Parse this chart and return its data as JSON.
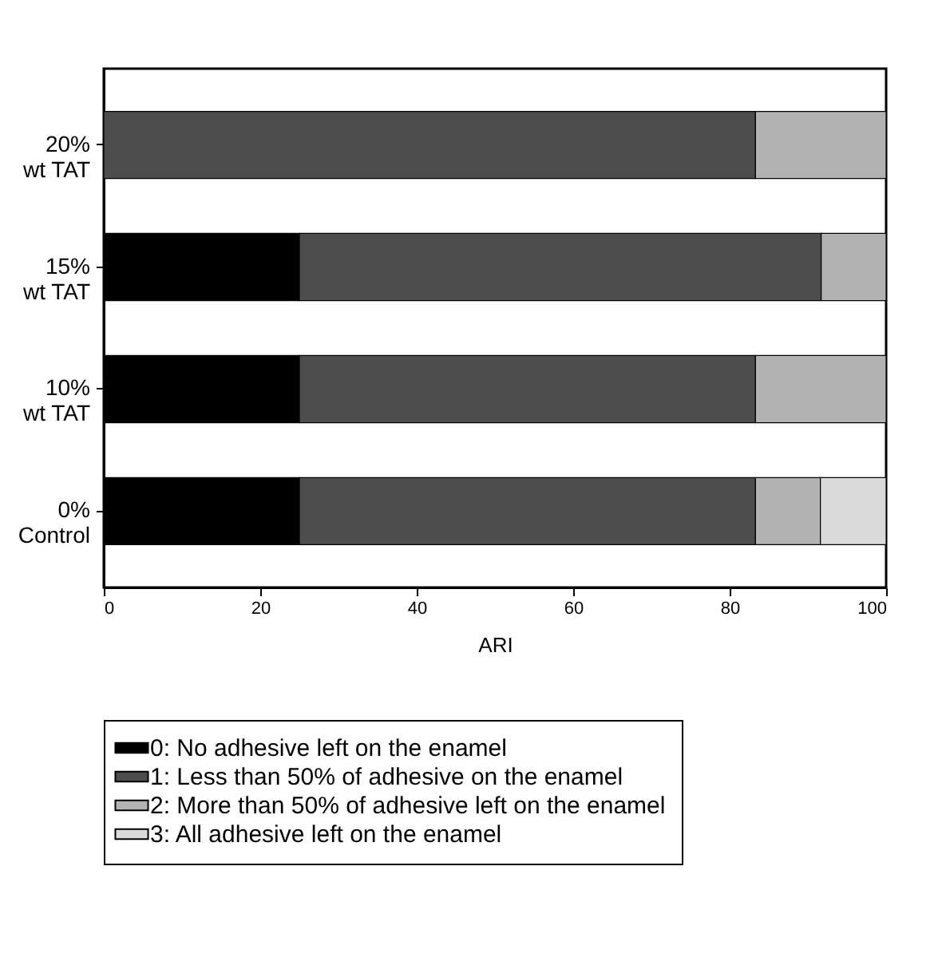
{
  "chart_data": {
    "type": "bar",
    "orientation": "horizontal",
    "stacked": true,
    "xlabel": "ARI",
    "categories": [
      "20%\nwt TAT",
      "15%\nwt TAT",
      "10%\nwt TAT",
      "0%\nControl"
    ],
    "series": [
      {
        "name": "0: No adhesive left on the enamel",
        "color": "#000000",
        "values": [
          0,
          25,
          25,
          25
        ]
      },
      {
        "name": "1: Less than 50% of adhesive on the enamel",
        "color": "#4d4d4d",
        "values": [
          83.3,
          66.7,
          58.3,
          58.3
        ]
      },
      {
        "name": "2: More than 50% of adhesive left on the enamel",
        "color": "#b2b2b2",
        "values": [
          16.7,
          8.3,
          16.7,
          8.3
        ]
      },
      {
        "name": "3: All adhesive left on the enamel",
        "color": "#dadada",
        "values": [
          0,
          0,
          0,
          8.4
        ]
      }
    ],
    "xlim": [
      0,
      100
    ],
    "xticks": [
      0,
      20,
      40,
      60,
      80,
      100
    ],
    "grid": false,
    "legend": "bottom"
  }
}
